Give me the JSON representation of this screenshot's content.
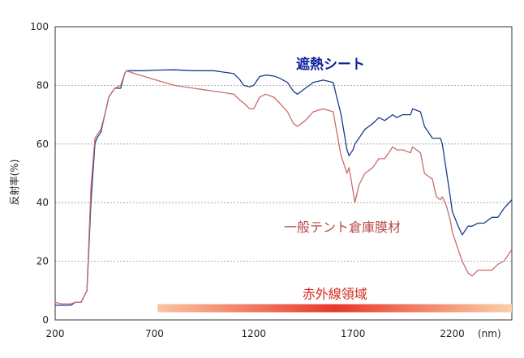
{
  "chart_data": {
    "type": "line",
    "xlabel": "",
    "x_unit": "(nm)",
    "ylabel": "反射率(%)",
    "xlim": [
      200,
      2500
    ],
    "ylim": [
      0,
      100
    ],
    "xticks": [
      200,
      700,
      1200,
      1700,
      2200
    ],
    "yticks": [
      0,
      20,
      40,
      60,
      80,
      100
    ],
    "grid": true,
    "series": [
      {
        "name": "遮熱シート",
        "color": "#1a3c8c",
        "label_color": "#0d1f9e",
        "x": [
          200,
          230,
          280,
          300,
          330,
          360,
          380,
          400,
          410,
          430,
          450,
          470,
          500,
          530,
          550,
          560,
          580,
          600,
          650,
          700,
          800,
          900,
          1000,
          1050,
          1100,
          1130,
          1150,
          1180,
          1200,
          1230,
          1260,
          1300,
          1330,
          1370,
          1400,
          1420,
          1460,
          1500,
          1550,
          1600,
          1640,
          1670,
          1680,
          1700,
          1710,
          1730,
          1760,
          1800,
          1830,
          1860,
          1880,
          1900,
          1920,
          1950,
          1990,
          2000,
          2040,
          2060,
          2080,
          2100,
          2120,
          2140,
          2150,
          2170,
          2190,
          2200,
          2230,
          2250,
          2280,
          2300,
          2330,
          2360,
          2400,
          2430,
          2460,
          2500
        ],
        "y": [
          5,
          5,
          5,
          6,
          6,
          10,
          40,
          60,
          62,
          64,
          70,
          76,
          79,
          79,
          84,
          85,
          85,
          85,
          85,
          85.2,
          85.3,
          85,
          85,
          84.5,
          84,
          82,
          80,
          79.5,
          80,
          83,
          83.5,
          83.2,
          82.5,
          81,
          78,
          77,
          79,
          81,
          81.8,
          81,
          70,
          58,
          56,
          58,
          60,
          62,
          65,
          67,
          69,
          68,
          69,
          70,
          69,
          70,
          70,
          72,
          71,
          66,
          64,
          62,
          62,
          62,
          60,
          51,
          42,
          37,
          32,
          29,
          32,
          32,
          33,
          33,
          35,
          35,
          38,
          41
        ]
      },
      {
        "name": "一般テント倉庫膜材",
        "color": "#c96c6c",
        "label_color": "#b84a4a",
        "x": [
          200,
          230,
          280,
          300,
          330,
          360,
          380,
          400,
          410,
          430,
          450,
          470,
          500,
          530,
          550,
          560,
          580,
          600,
          650,
          700,
          800,
          900,
          1000,
          1050,
          1100,
          1130,
          1150,
          1180,
          1200,
          1230,
          1260,
          1300,
          1330,
          1370,
          1400,
          1420,
          1460,
          1500,
          1550,
          1600,
          1640,
          1670,
          1680,
          1700,
          1710,
          1730,
          1760,
          1800,
          1830,
          1860,
          1880,
          1900,
          1920,
          1950,
          1990,
          2000,
          2040,
          2060,
          2080,
          2100,
          2120,
          2140,
          2150,
          2170,
          2190,
          2200,
          2230,
          2250,
          2280,
          2300,
          2330,
          2360,
          2400,
          2430,
          2460,
          2500
        ],
        "y": [
          6,
          5.5,
          5.5,
          6,
          6,
          10,
          45,
          62,
          63,
          65,
          70,
          76,
          79,
          80,
          84,
          85,
          84.5,
          84,
          83,
          82,
          80,
          79,
          78,
          77.5,
          77,
          75,
          74,
          72,
          72,
          76,
          77,
          76,
          74,
          71,
          67,
          66,
          68,
          71,
          72,
          71,
          56,
          50,
          52,
          44,
          40,
          46,
          50,
          52,
          55,
          55,
          57,
          59,
          58,
          58,
          57,
          59,
          57,
          50,
          49,
          48,
          42,
          41,
          42,
          39,
          34,
          30,
          24,
          20,
          16,
          15,
          17,
          17,
          17,
          19,
          20,
          24
        ]
      }
    ],
    "annotations": {
      "band_label": "赤外線領域",
      "band_range": [
        700,
        2500
      ]
    }
  }
}
